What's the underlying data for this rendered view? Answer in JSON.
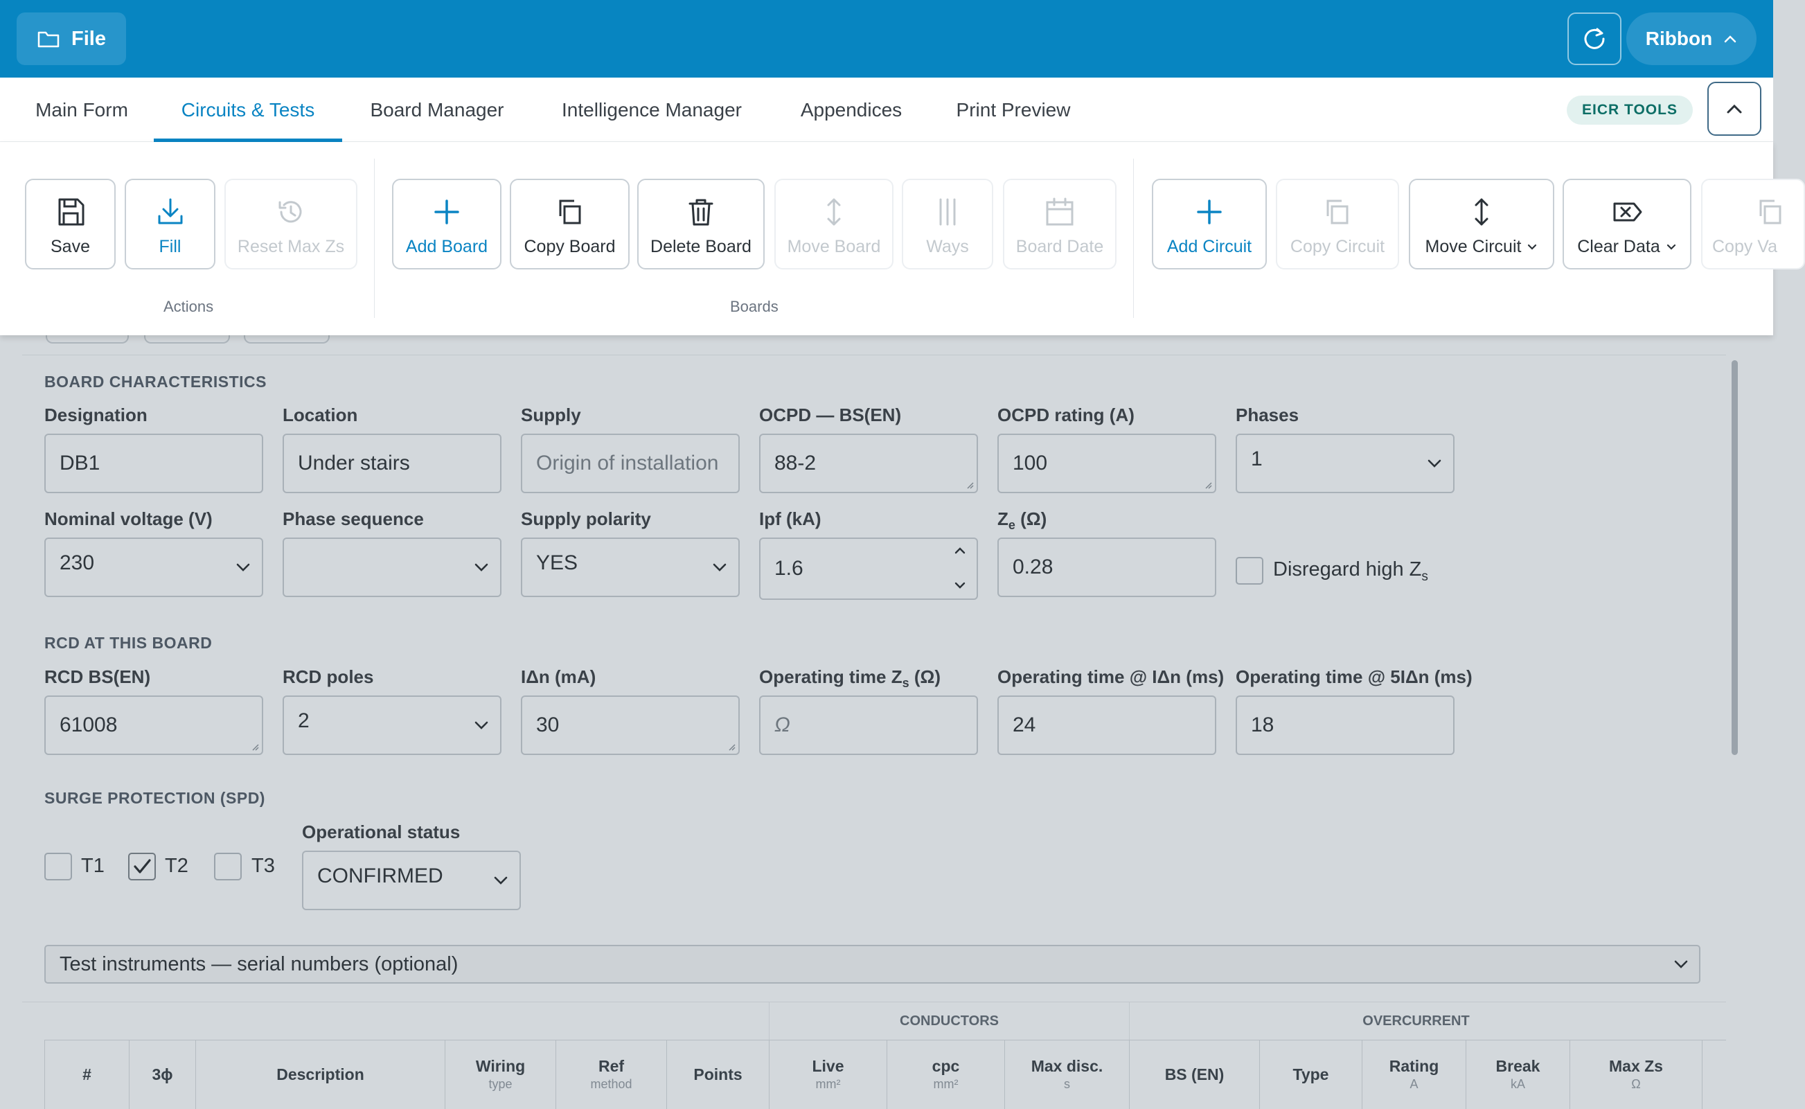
{
  "topbar": {
    "file_label": "File",
    "ribbon_label": "Ribbon"
  },
  "tabs": [
    {
      "label": "Main Form",
      "active": false
    },
    {
      "label": "Circuits & Tests",
      "active": true
    },
    {
      "label": "Board Manager",
      "active": false
    },
    {
      "label": "Intelligence Manager",
      "active": false
    },
    {
      "label": "Appendices",
      "active": false
    },
    {
      "label": "Print Preview",
      "active": false
    }
  ],
  "eicr_badge": "EICR TOOLS",
  "ribbon": {
    "actions": {
      "group_label": "Actions",
      "save": "Save",
      "fill": "Fill",
      "reset_max_zs": "Reset Max Zs"
    },
    "boards": {
      "group_label": "Boards",
      "add_board": "Add Board",
      "copy_board": "Copy Board",
      "delete_board": "Delete Board",
      "move_board": "Move Board",
      "ways": "Ways",
      "board_date": "Board Date"
    },
    "circuits": {
      "add_circuit": "Add Circuit",
      "copy_circuit": "Copy Circuit",
      "move_circuit": "Move Circuit",
      "clear_data": "Clear Data",
      "copy_values": "Copy Va"
    }
  },
  "board_characteristics": {
    "title": "BOARD CHARACTERISTICS",
    "designation": {
      "label": "Designation",
      "value": "DB1"
    },
    "location": {
      "label": "Location",
      "value": "Under stairs"
    },
    "supply": {
      "label": "Supply",
      "value": "Origin of installation"
    },
    "ocpd_bs": {
      "label": "OCPD — BS(EN)",
      "value": "88-2"
    },
    "ocpd_rating": {
      "label": "OCPD rating (A)",
      "value": "100"
    },
    "phases": {
      "label": "Phases",
      "value": "1"
    },
    "nominal_voltage": {
      "label": "Nominal voltage (V)",
      "value": "230"
    },
    "phase_sequence": {
      "label": "Phase sequence",
      "value": ""
    },
    "supply_polarity": {
      "label": "Supply polarity",
      "value": "YES"
    },
    "ipf": {
      "label": "Ipf (kA)",
      "value": "1.6"
    },
    "ze": {
      "label_main": "Z",
      "label_sub": "e",
      "label_rest": " (Ω)",
      "value": "0.28"
    },
    "disregard": {
      "label_main": "Disregard high Z",
      "label_sub": "s",
      "checked": false
    }
  },
  "rcd": {
    "title": "RCD AT THIS BOARD",
    "rcd_bs": {
      "label": "RCD BS(EN)",
      "value": "61008"
    },
    "rcd_poles": {
      "label": "RCD poles",
      "value": "2"
    },
    "idn": {
      "label": "IΔn (mA)",
      "value": "30"
    },
    "op_time_zs": {
      "label_main": "Operating time Z",
      "label_sub": "s",
      "label_rest": " (Ω)",
      "placeholder": "Ω"
    },
    "op_time_idn": {
      "label": "Operating time @ IΔn (ms)",
      "value": "24"
    },
    "op_time_5idn": {
      "label": "Operating time @ 5IΔn (ms)",
      "value": "18"
    }
  },
  "spd": {
    "title": "SURGE PROTECTION (SPD)",
    "t1": {
      "label": "T1",
      "checked": false
    },
    "t2": {
      "label": "T2",
      "checked": true
    },
    "t3": {
      "label": "T3",
      "checked": false
    },
    "operational_status": {
      "label": "Operational status",
      "value": "CONFIRMED"
    }
  },
  "instruments_label": "Test instruments — serial numbers (optional)",
  "table": {
    "groups": {
      "conductors": "CONDUCTORS",
      "overcurrent": "OVERCURRENT"
    },
    "columns": [
      {
        "h": "#",
        "s": ""
      },
      {
        "h": "3ɸ",
        "s": ""
      },
      {
        "h": "Description",
        "s": ""
      },
      {
        "h": "Wiring",
        "s": "type"
      },
      {
        "h": "Ref",
        "s": "method"
      },
      {
        "h": "Points",
        "s": ""
      },
      {
        "h": "Live",
        "s": "mm²"
      },
      {
        "h": "cpc",
        "s": "mm²"
      },
      {
        "h": "Max disc.",
        "s": "s"
      },
      {
        "h": "BS (EN)",
        "s": ""
      },
      {
        "h": "Type",
        "s": ""
      },
      {
        "h": "Rating",
        "s": "A"
      },
      {
        "h": "Break",
        "s": "kA"
      },
      {
        "h": "Max Zs",
        "s": "Ω"
      }
    ]
  },
  "colors": {
    "brand_blue": "#0785c1",
    "accent": "#0a84c3",
    "badge_bg": "#e2f1ef",
    "badge_text": "#0d6e66"
  }
}
